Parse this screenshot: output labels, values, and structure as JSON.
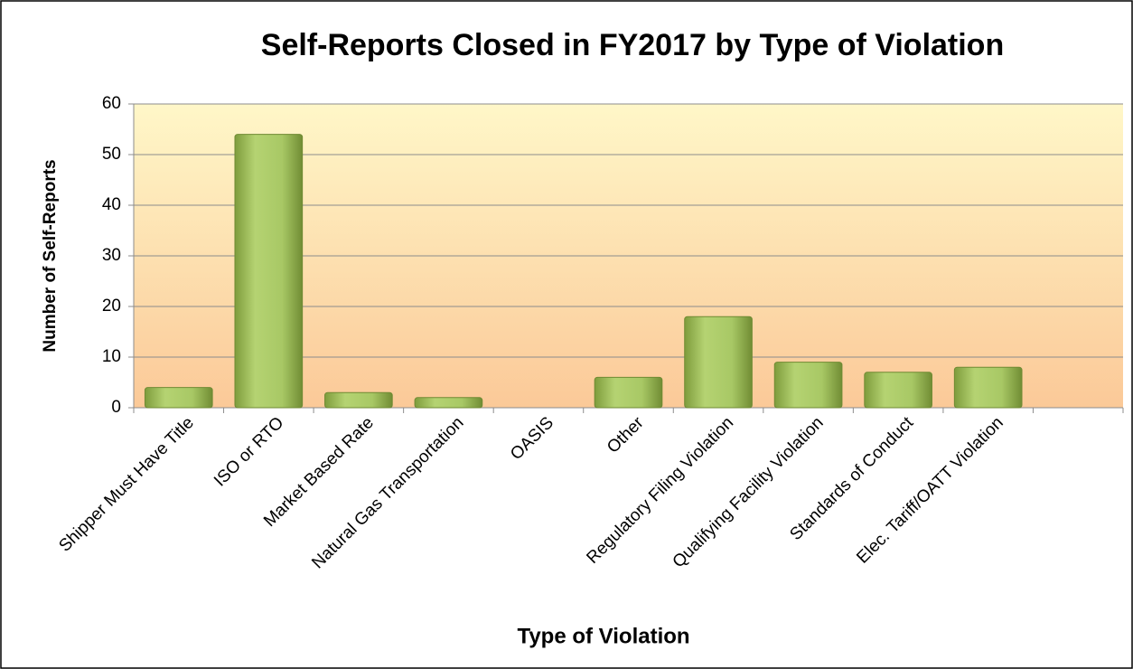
{
  "chart_data": {
    "type": "bar",
    "title": "Self-Reports Closed in FY2017 by Type of Violation",
    "x_label": "Type of Violation",
    "y_label": "Number of Self-Reports",
    "categories": [
      "Shipper Must Have Title",
      "ISO or RTO",
      "Market Based Rate",
      "Natural Gas Transportation",
      "OASIS",
      "Other",
      "Regulatory Filing Violation",
      "Qualifying Facility Violation",
      "Standards of Conduct",
      "Elec. Tariff/OATT Violation",
      null
    ],
    "values": [
      4,
      54,
      3,
      2,
      0,
      6,
      18,
      9,
      7,
      8,
      null
    ],
    "color": "#9bbb59",
    "ylim": [
      0,
      60
    ],
    "yticks": [
      0,
      10,
      20,
      30,
      40,
      50,
      60
    ],
    "grid": true
  }
}
